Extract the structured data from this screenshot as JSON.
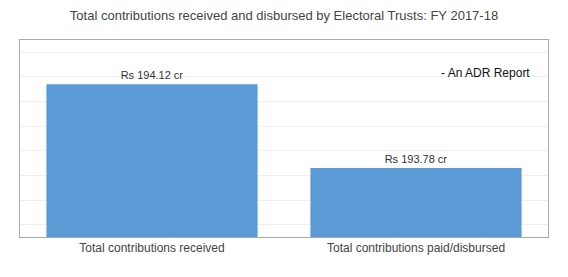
{
  "chart_data": {
    "type": "bar",
    "title": "Total contributions received and disbursed by Electoral Trusts: FY 2017-18",
    "categories": [
      "Total contributions received",
      "Total contributions paid/disbursed"
    ],
    "values": [
      194.12,
      193.78
    ],
    "value_labels": [
      "Rs 194.12 cr",
      "Rs 193.78 cr"
    ],
    "data_labels": true,
    "color": "#5B9BD5",
    "ylim": [
      193.5,
      194.3
    ],
    "yticks": [
      193.55,
      193.65,
      193.75,
      193.85,
      193.95,
      194.05,
      194.15,
      194.25
    ],
    "grid": true,
    "tick_labels": "x",
    "annotations": [
      "- An ADR Report"
    ]
  }
}
